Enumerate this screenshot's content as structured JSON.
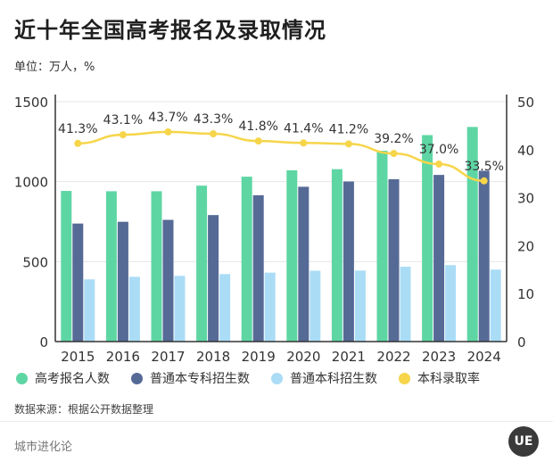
{
  "header": {
    "title": "近十年全国高考报名及录取情况",
    "unit": "单位：万人，%"
  },
  "footer": {
    "source": "数据来源：根据公开数据整理",
    "brand": "城市进化论",
    "logo_text": "UE"
  },
  "colors": {
    "registrants": "#5ed6a4",
    "undergrad_specialty": "#566a96",
    "bachelor": "#aadcf6",
    "rate": "#f6d54a"
  },
  "chart_data": {
    "type": "bar",
    "categories": [
      "2015",
      "2016",
      "2017",
      "2018",
      "2019",
      "2020",
      "2021",
      "2022",
      "2023",
      "2024"
    ],
    "series": [
      {
        "name": "高考报名人数",
        "type": "bar",
        "axis": "left",
        "values": [
          942,
          940,
          940,
          975,
          1031,
          1071,
          1078,
          1193,
          1291,
          1342
        ]
      },
      {
        "name": "普通本专科招生数",
        "type": "bar",
        "axis": "left",
        "values": [
          738,
          749,
          761,
          791,
          915,
          968,
          1001,
          1015,
          1042,
          1068
        ]
      },
      {
        "name": "普通本科招生数",
        "type": "bar",
        "axis": "left",
        "values": [
          389,
          405,
          411,
          422,
          431,
          443,
          444,
          468,
          478,
          450
        ]
      },
      {
        "name": "本科录取率",
        "type": "line",
        "axis": "right",
        "values": [
          41.3,
          43.1,
          43.7,
          43.3,
          41.8,
          41.4,
          41.2,
          39.2,
          37.0,
          33.5
        ],
        "labels": [
          "41.3%",
          "43.1%",
          "43.7%",
          "43.3%",
          "41.8%",
          "41.4%",
          "41.2%",
          "39.2%",
          "37.0%",
          "33.5%"
        ]
      }
    ],
    "left_axis": {
      "min": 0,
      "max": 1500,
      "ticks": [
        0,
        500,
        1000,
        1500
      ]
    },
    "right_axis": {
      "min": 0,
      "max": 50,
      "ticks": [
        0,
        10,
        20,
        30,
        40,
        50
      ]
    },
    "legend_position": "bottom"
  }
}
